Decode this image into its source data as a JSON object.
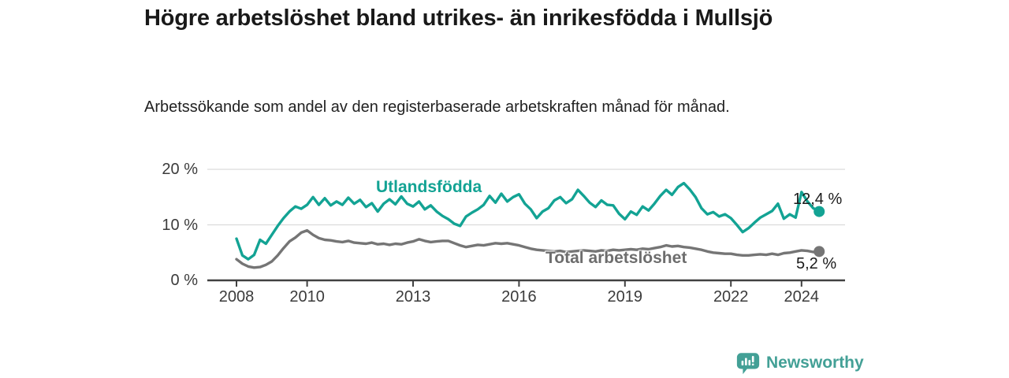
{
  "header": {
    "title": "Högre arbetslöshet bland utrikes- än inrikesfödda i Mullsjö",
    "subtitle": "Arbetssökande som andel av den registerbaserade arbetskraften månad för månad."
  },
  "chart_data": {
    "type": "line",
    "title": "Högre arbetslöshet bland utrikes- än inrikesfödda i Mullsjö",
    "xlabel": "",
    "ylabel": "",
    "x_unit": "year (monthly data)",
    "x_start": 2008.0,
    "x_end": 2024.5,
    "x_step_years": 0.16667,
    "xlim": [
      2007.2,
      2025.3
    ],
    "ylim": [
      0,
      21
    ],
    "grid": "horizontal",
    "x_ticks": [
      {
        "value": 2008,
        "label": "2008"
      },
      {
        "value": 2010,
        "label": "2010"
      },
      {
        "value": 2013,
        "label": "2013"
      },
      {
        "value": 2016,
        "label": "2016"
      },
      {
        "value": 2019,
        "label": "2019"
      },
      {
        "value": 2022,
        "label": "2022"
      },
      {
        "value": 2024,
        "label": "2024"
      }
    ],
    "y_ticks": [
      {
        "value": 0,
        "label": "0 %"
      },
      {
        "value": 10,
        "label": "10 %"
      },
      {
        "value": 20,
        "label": "20 %"
      }
    ],
    "series": [
      {
        "name": "Utlandsfödda",
        "color": "#13a394",
        "end_label": "12,4 %",
        "end_value": 12.4,
        "values": [
          7.5,
          4.5,
          3.8,
          4.6,
          7.3,
          6.6,
          8.2,
          9.8,
          11.2,
          12.4,
          13.3,
          12.9,
          13.6,
          15.0,
          13.6,
          14.8,
          13.5,
          14.2,
          13.6,
          14.9,
          13.8,
          14.5,
          13.2,
          13.9,
          12.4,
          13.8,
          14.6,
          13.7,
          15.1,
          13.8,
          13.3,
          14.2,
          12.8,
          13.5,
          12.4,
          11.6,
          11.0,
          10.2,
          9.8,
          11.5,
          12.2,
          12.8,
          13.6,
          15.2,
          14.0,
          15.6,
          14.2,
          15.0,
          15.5,
          13.8,
          12.8,
          11.2,
          12.4,
          13.0,
          14.4,
          15.0,
          13.9,
          14.6,
          16.3,
          15.2,
          14.0,
          13.2,
          14.4,
          13.6,
          13.5,
          12.0,
          11.0,
          12.4,
          11.8,
          13.3,
          12.6,
          13.8,
          15.2,
          16.3,
          15.4,
          16.8,
          17.5,
          16.4,
          15.0,
          13.0,
          11.9,
          12.3,
          11.5,
          11.9,
          11.2,
          10.0,
          8.7,
          9.4,
          10.4,
          11.3,
          11.9,
          12.5,
          13.8,
          11.1,
          11.9,
          11.3,
          15.9,
          14.2,
          13.0,
          12.4
        ]
      },
      {
        "name": "Total arbetslöshet",
        "color": "#757575",
        "label_color": "#6d6d6d",
        "end_label": "5,2 %",
        "end_value": 5.2,
        "values": [
          3.8,
          3.0,
          2.5,
          2.3,
          2.4,
          2.8,
          3.4,
          4.5,
          5.8,
          7.0,
          7.7,
          8.6,
          9.0,
          8.2,
          7.6,
          7.3,
          7.2,
          7.0,
          6.9,
          7.1,
          6.8,
          6.7,
          6.6,
          6.8,
          6.5,
          6.6,
          6.4,
          6.6,
          6.5,
          6.8,
          7.0,
          7.4,
          7.1,
          6.9,
          7.0,
          7.1,
          7.1,
          6.7,
          6.3,
          6.0,
          6.2,
          6.4,
          6.3,
          6.5,
          6.7,
          6.6,
          6.7,
          6.5,
          6.3,
          6.0,
          5.7,
          5.5,
          5.4,
          5.3,
          5.2,
          5.3,
          5.1,
          5.2,
          5.3,
          5.4,
          5.3,
          5.2,
          5.4,
          5.3,
          5.5,
          5.4,
          5.5,
          5.6,
          5.5,
          5.7,
          5.6,
          5.8,
          6.0,
          6.3,
          6.1,
          6.2,
          6.0,
          5.9,
          5.7,
          5.5,
          5.2,
          5.0,
          4.9,
          4.8,
          4.8,
          4.6,
          4.5,
          4.5,
          4.6,
          4.7,
          4.6,
          4.8,
          4.6,
          4.9,
          5.0,
          5.2,
          5.4,
          5.3,
          5.1,
          5.2
        ]
      }
    ],
    "legend_position": "inline-labels"
  },
  "style": {
    "gridline_color": "#dcdcdc",
    "axis_color": "#414141",
    "tick_text_color": "#3b3b3b"
  },
  "branding": {
    "logo_text": "Newsworthy",
    "logo_color": "#43a096"
  }
}
